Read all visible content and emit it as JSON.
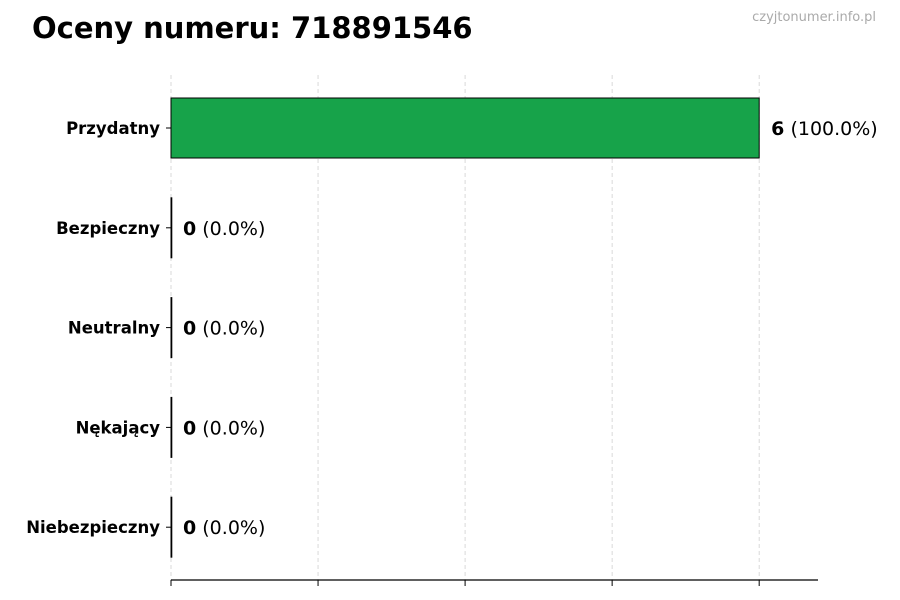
{
  "chart_data": {
    "type": "bar",
    "orientation": "horizontal",
    "title": "Oceny numeru: 718891546",
    "watermark": "czyjtonumer.info.pl",
    "categories": [
      "Przydatny",
      "Bezpieczny",
      "Neutralny",
      "Nękający",
      "Niebezpieczny"
    ],
    "values": [
      6,
      0,
      0,
      0,
      0
    ],
    "percent_labels": [
      "(100.0%)",
      "(0.0%)",
      "(0.0%)",
      "(0.0%)",
      "(0.0%)"
    ],
    "xlim": [
      0,
      6.6
    ],
    "xticks": [
      0,
      1.5,
      3,
      4.5,
      6
    ],
    "xlabel": "",
    "ylabel": "",
    "grid": "x, dashed",
    "bar_color": "#17a34a",
    "legend": "none"
  }
}
